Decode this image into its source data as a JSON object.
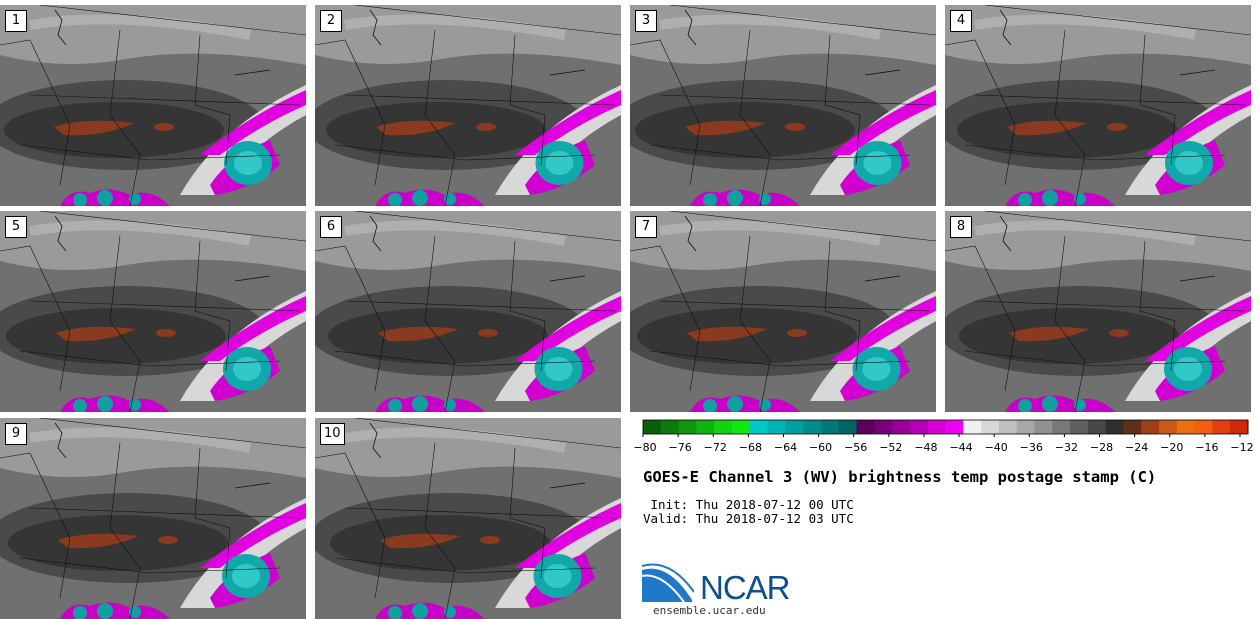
{
  "panels": [
    {
      "label": "1"
    },
    {
      "label": "2"
    },
    {
      "label": "3"
    },
    {
      "label": "4"
    },
    {
      "label": "5"
    },
    {
      "label": "6"
    },
    {
      "label": "7"
    },
    {
      "label": "8"
    },
    {
      "label": "9"
    },
    {
      "label": "10"
    }
  ],
  "colorbar": {
    "ticks": [
      "−80",
      "−76",
      "−72",
      "−68",
      "−64",
      "−60",
      "−56",
      "−52",
      "−48",
      "−44",
      "−40",
      "−36",
      "−32",
      "−28",
      "−24",
      "−20",
      "−16",
      "−12"
    ],
    "colors": [
      "#0a5f0a",
      "#0c7a0c",
      "#0f960f",
      "#10b410",
      "#12d212",
      "#14e614",
      "#00c8c8",
      "#00b4b4",
      "#00a0a0",
      "#008c8c",
      "#007878",
      "#006464",
      "#5a005a",
      "#780078",
      "#960096",
      "#b400b4",
      "#d200d2",
      "#f000f0",
      "#f0f0f0",
      "#d8d8d8",
      "#c0c0c0",
      "#a8a8a8",
      "#909090",
      "#787878",
      "#606060",
      "#484848",
      "#303030",
      "#603018",
      "#a0401a",
      "#c85a18",
      "#e87010",
      "#f06010",
      "#e04010",
      "#d02808"
    ]
  },
  "title": "GOES-E Channel 3 (WV) brightness temp postage stamp (C)",
  "init": " Init: Thu 2018-07-12 00 UTC",
  "valid": "Valid: Thu 2018-07-12 03 UTC",
  "logo": {
    "text": "NCAR",
    "site": "ensemble.ucar.edu"
  }
}
